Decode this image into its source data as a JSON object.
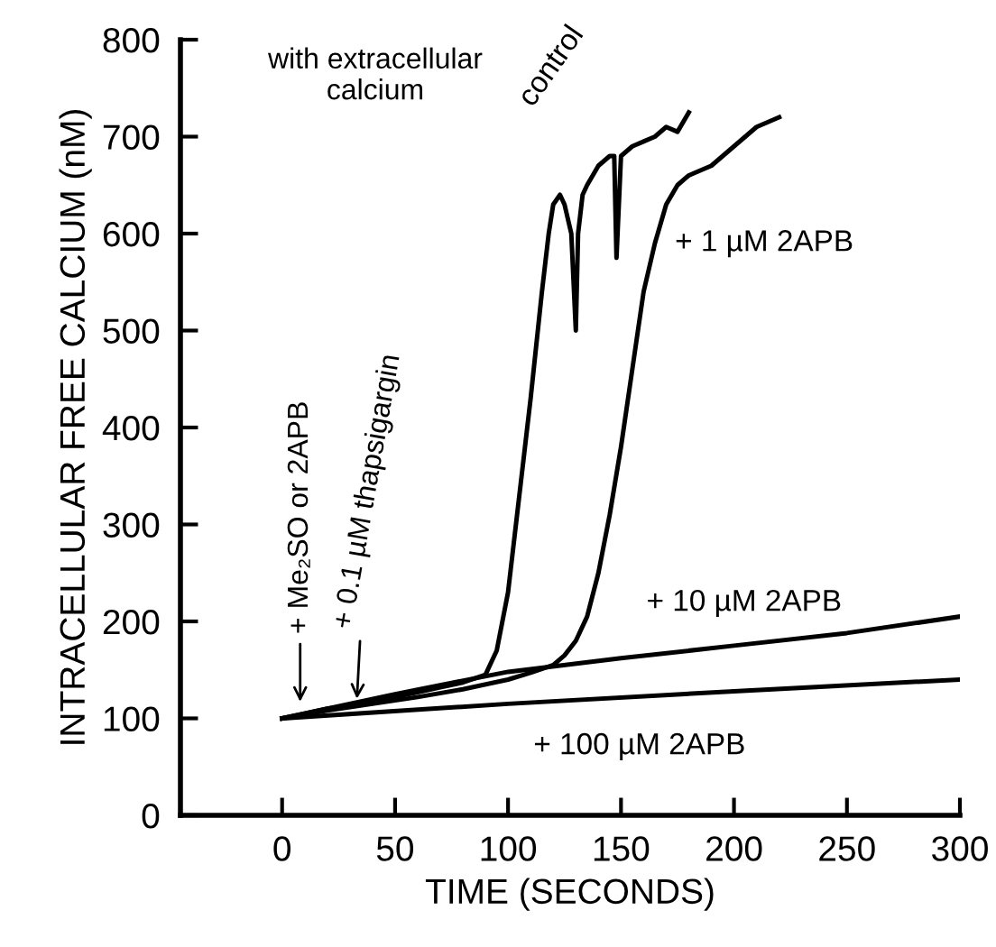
{
  "chart_data": {
    "type": "line",
    "xlabel": "TIME (SECONDS)",
    "ylabel": "INTRACELLULAR FREE CALCIUM (nM)",
    "xlim": [
      -45,
      300
    ],
    "ylim": [
      0,
      800
    ],
    "xticks": [
      0,
      50,
      100,
      150,
      200,
      250,
      300
    ],
    "yticks": [
      0,
      100,
      200,
      300,
      400,
      500,
      600,
      700,
      800
    ],
    "grid": false,
    "legend": false,
    "marker": "none",
    "line_style": "solid",
    "series": [
      {
        "name": "control",
        "color": "#000000",
        "x": [
          0,
          10,
          20,
          30,
          40,
          50,
          60,
          70,
          80,
          90,
          95,
          100,
          105,
          110,
          115,
          118,
          120,
          123,
          125,
          128,
          130,
          131,
          133,
          135,
          140,
          145,
          147,
          148,
          150,
          155,
          160,
          165,
          170,
          175,
          180
        ],
        "values": [
          100,
          105,
          110,
          113,
          118,
          122,
          127,
          132,
          137,
          145,
          170,
          230,
          330,
          430,
          540,
          600,
          630,
          640,
          630,
          600,
          500,
          600,
          640,
          650,
          670,
          680,
          680,
          575,
          680,
          690,
          695,
          700,
          710,
          705,
          725
        ]
      },
      {
        "name": "+ 1 µM 2APB",
        "color": "#000000",
        "x": [
          0,
          20,
          40,
          60,
          80,
          100,
          110,
          120,
          125,
          130,
          135,
          140,
          145,
          150,
          155,
          160,
          165,
          170,
          175,
          180,
          190,
          200,
          210,
          220
        ],
        "values": [
          100,
          108,
          115,
          122,
          130,
          140,
          147,
          155,
          165,
          180,
          205,
          250,
          310,
          380,
          460,
          540,
          590,
          630,
          650,
          660,
          670,
          690,
          710,
          720
        ]
      },
      {
        "name": "+ 10 µM 2APB",
        "color": "#000000",
        "x": [
          0,
          50,
          100,
          150,
          200,
          250,
          300
        ],
        "values": [
          100,
          125,
          148,
          162,
          175,
          188,
          205
        ]
      },
      {
        "name": "+ 100 µM 2APB",
        "color": "#000000",
        "x": [
          0,
          100,
          200,
          300
        ],
        "values": [
          100,
          115,
          128,
          140
        ]
      }
    ],
    "annotations": [
      "with extracellular\ncalcium",
      {
        "text": "+ Me₂SO or 2APB",
        "x": 8,
        "y": 112
      },
      {
        "text": "+ 0.1 µM thapsigargin",
        "x": 33,
        "y": 115
      }
    ]
  }
}
